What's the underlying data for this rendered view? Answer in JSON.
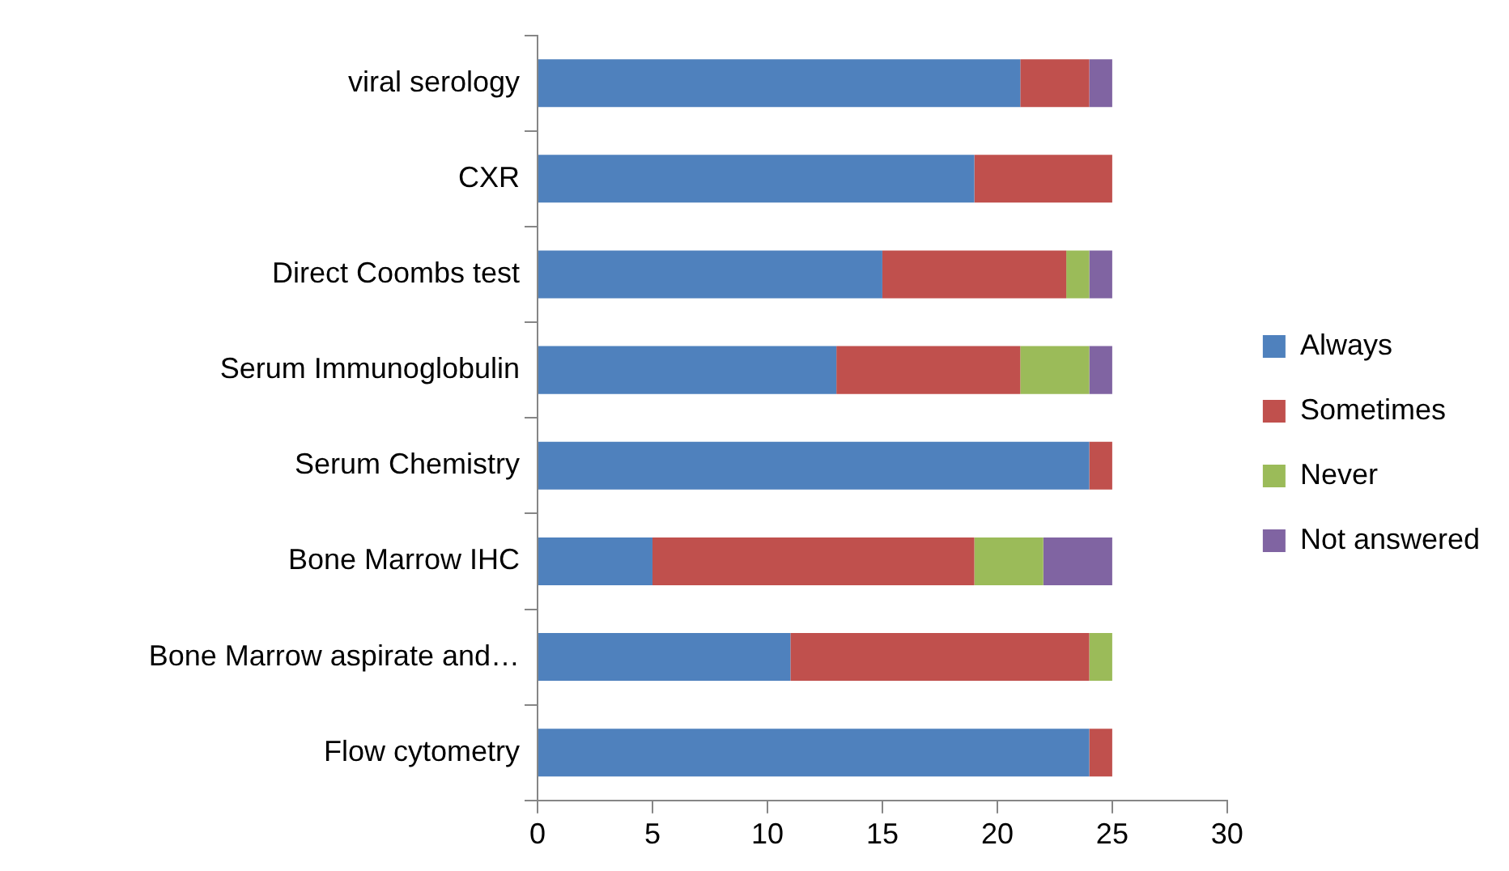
{
  "chart_data": {
    "type": "bar",
    "orientation": "horizontal",
    "stacked": true,
    "categories": [
      "viral serology",
      "CXR",
      "Direct Coombs test",
      "Serum Immunoglobulin",
      "Serum Chemistry",
      "Bone Marrow IHC",
      "Bone Marrow aspirate and…",
      "Flow cytometry"
    ],
    "series": [
      {
        "name": "Always",
        "color": "#4f81bd",
        "values": [
          21,
          19,
          15,
          13,
          24,
          5,
          11,
          24
        ]
      },
      {
        "name": "Sometimes",
        "color": "#c0504d",
        "values": [
          3,
          6,
          8,
          8,
          1,
          14,
          13,
          1
        ]
      },
      {
        "name": "Never",
        "color": "#9bbb59",
        "values": [
          0,
          0,
          1,
          3,
          0,
          3,
          1,
          0
        ]
      },
      {
        "name": "Not answered",
        "color": "#8064a2",
        "values": [
          1,
          0,
          1,
          1,
          0,
          3,
          0,
          0
        ]
      }
    ],
    "xlim": [
      0,
      30
    ],
    "xticks": [
      0,
      5,
      10,
      15,
      20,
      25,
      30
    ],
    "grid": false,
    "legend": "right"
  }
}
